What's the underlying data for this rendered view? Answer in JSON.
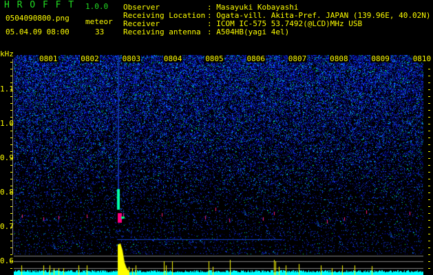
{
  "header": {
    "app_name": "H R O F F T",
    "version": "1.0.0",
    "filename": "0504090800.png",
    "datetime": "05.04.09 08:00",
    "meteor_label": "meteor",
    "meteor_count": "33",
    "info": [
      {
        "label": "Observer",
        "value": ": Masayuki Kobayashi"
      },
      {
        "label": "Receiving Location",
        "value": ": Ogata-vill. Akita-Pref. JAPAN (139.96E, 40.02N)"
      },
      {
        "label": "Receiver",
        "value": ": ICOM IC-575 53.7492(@LCD)MHz USB"
      },
      {
        "label": "Receiving antenna",
        "value": ": A504HB(yagi 4el)"
      }
    ]
  },
  "chart_data": {
    "type": "heatmap",
    "ylabel": "kHz",
    "ylim": [
      0.56,
      1.2
    ],
    "yticks": [
      "1.1",
      "1.0",
      "0.9",
      "0.8",
      "0.7",
      "0.6"
    ],
    "xticks": [
      "0801",
      "0802",
      "0803",
      "0804",
      "0805",
      "0806",
      "0807",
      "0808",
      "0809",
      "0810"
    ],
    "xlim": [
      "08:00",
      "08:10"
    ],
    "colormap": [
      "#000000",
      "#0000a0",
      "#2040ff",
      "#00ffff",
      "#00ff40",
      "#ff0080"
    ],
    "events": [
      {
        "time": "08:02:55",
        "freq_khz": 0.73,
        "strength": "strong"
      }
    ],
    "lower_panel": {
      "baseline_color": "#00ffff",
      "peak_color": "#ffff00"
    }
  }
}
